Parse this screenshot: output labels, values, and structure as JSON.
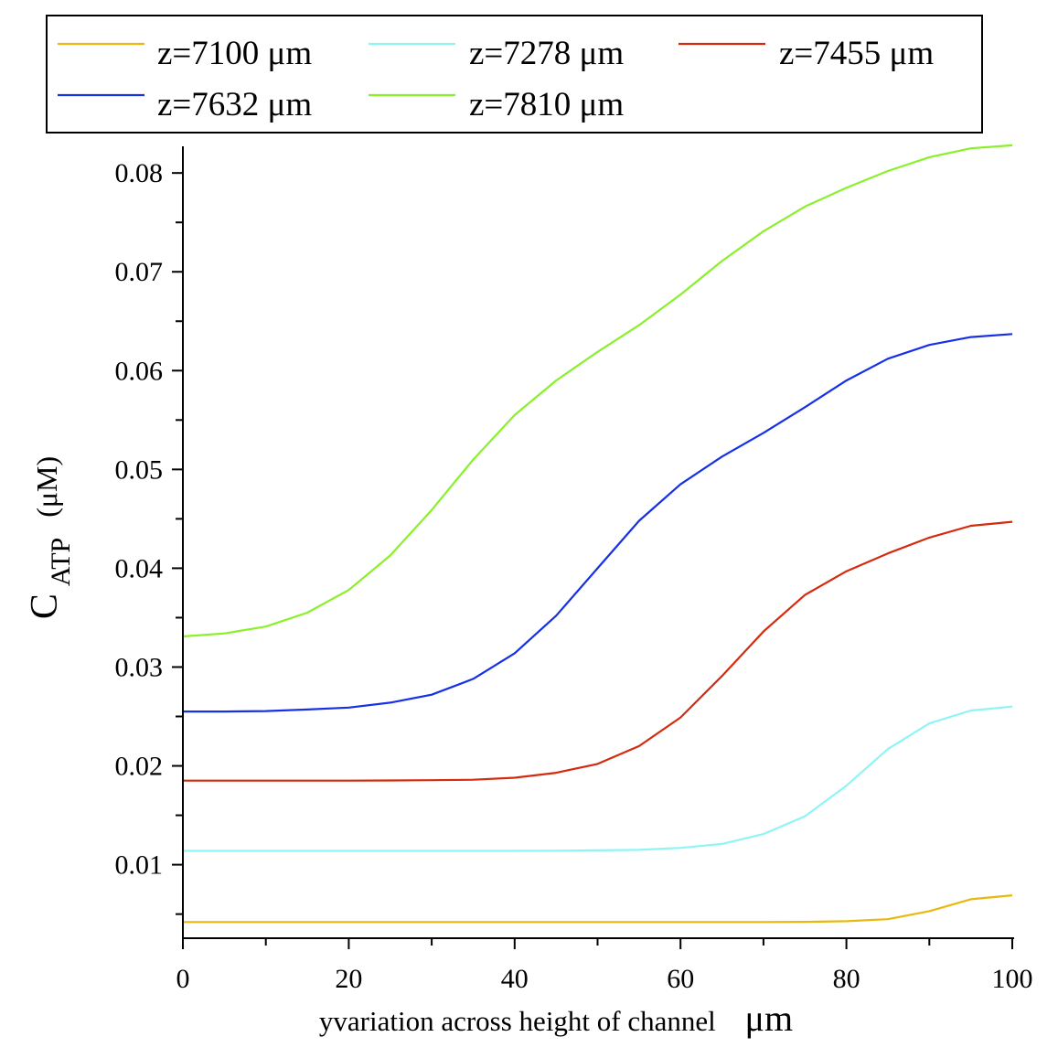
{
  "chart_data": {
    "type": "line",
    "xlabel": "yvariation across height of channel",
    "xlabel_unit": "μm",
    "ylabel_main": "C",
    "ylabel_sub": "ATP",
    "ylabel_unit": "(μM)",
    "xlim": [
      0,
      100
    ],
    "ylim": [
      0.0033,
      0.0827
    ],
    "x_ticks": [
      0,
      20,
      40,
      60,
      80,
      100
    ],
    "x_tick_labels": [
      "0",
      "20",
      "40",
      "60",
      "80",
      "100"
    ],
    "y_ticks": [
      0.01,
      0.02,
      0.03,
      0.04,
      0.05,
      0.06,
      0.07,
      0.08
    ],
    "y_tick_labels": [
      "0.01",
      "0.02",
      "0.03",
      "0.04",
      "0.05",
      "0.06",
      "0.07",
      "0.08"
    ],
    "y_minor_ticks": [
      0.005,
      0.015,
      0.025,
      0.035,
      0.045,
      0.055,
      0.065,
      0.075
    ],
    "x_minor_step": 10,
    "grid": false,
    "legend_position": "top",
    "x": [
      0,
      5,
      10,
      15,
      20,
      25,
      30,
      35,
      40,
      45,
      50,
      55,
      60,
      65,
      70,
      75,
      80,
      85,
      90,
      95,
      100
    ],
    "series": [
      {
        "name": "z=7100 μm",
        "color": "#e8b90c",
        "values": [
          0.0042,
          0.0042,
          0.0042,
          0.0042,
          0.0042,
          0.0042,
          0.0042,
          0.0042,
          0.0042,
          0.0042,
          0.0042,
          0.0042,
          0.0042,
          0.0042,
          0.0042,
          0.00422,
          0.00428,
          0.00448,
          0.0053,
          0.0065,
          0.0069
        ]
      },
      {
        "name": "z=7278 μm",
        "color": "#8ef5f5",
        "values": [
          0.0114,
          0.0114,
          0.0114,
          0.0114,
          0.0114,
          0.0114,
          0.0114,
          0.0114,
          0.0114,
          0.01142,
          0.01145,
          0.0115,
          0.0117,
          0.0121,
          0.0131,
          0.0149,
          0.018,
          0.0217,
          0.0243,
          0.0256,
          0.026
        ]
      },
      {
        "name": "z=7455 μm",
        "color": "#d42a0e",
        "values": [
          0.0185,
          0.0185,
          0.0185,
          0.0185,
          0.0185,
          0.01852,
          0.01855,
          0.0186,
          0.0188,
          0.0193,
          0.0202,
          0.022,
          0.0249,
          0.0291,
          0.0336,
          0.0373,
          0.0397,
          0.0415,
          0.0431,
          0.0443,
          0.0447
        ]
      },
      {
        "name": "z=7632 μm",
        "color": "#1530e6",
        "values": [
          0.0255,
          0.0255,
          0.02555,
          0.0257,
          0.0259,
          0.0264,
          0.0272,
          0.0288,
          0.0314,
          0.0352,
          0.04,
          0.0448,
          0.0485,
          0.0513,
          0.0537,
          0.0563,
          0.059,
          0.0612,
          0.0626,
          0.0634,
          0.0637
        ]
      },
      {
        "name": "z=7810 μm",
        "color": "#8af02a",
        "values": [
          0.0331,
          0.0334,
          0.0341,
          0.0355,
          0.0378,
          0.0413,
          0.0459,
          0.051,
          0.0555,
          0.059,
          0.0619,
          0.0646,
          0.0677,
          0.0711,
          0.0741,
          0.0766,
          0.0785,
          0.0802,
          0.0816,
          0.0825,
          0.0828
        ]
      }
    ]
  }
}
